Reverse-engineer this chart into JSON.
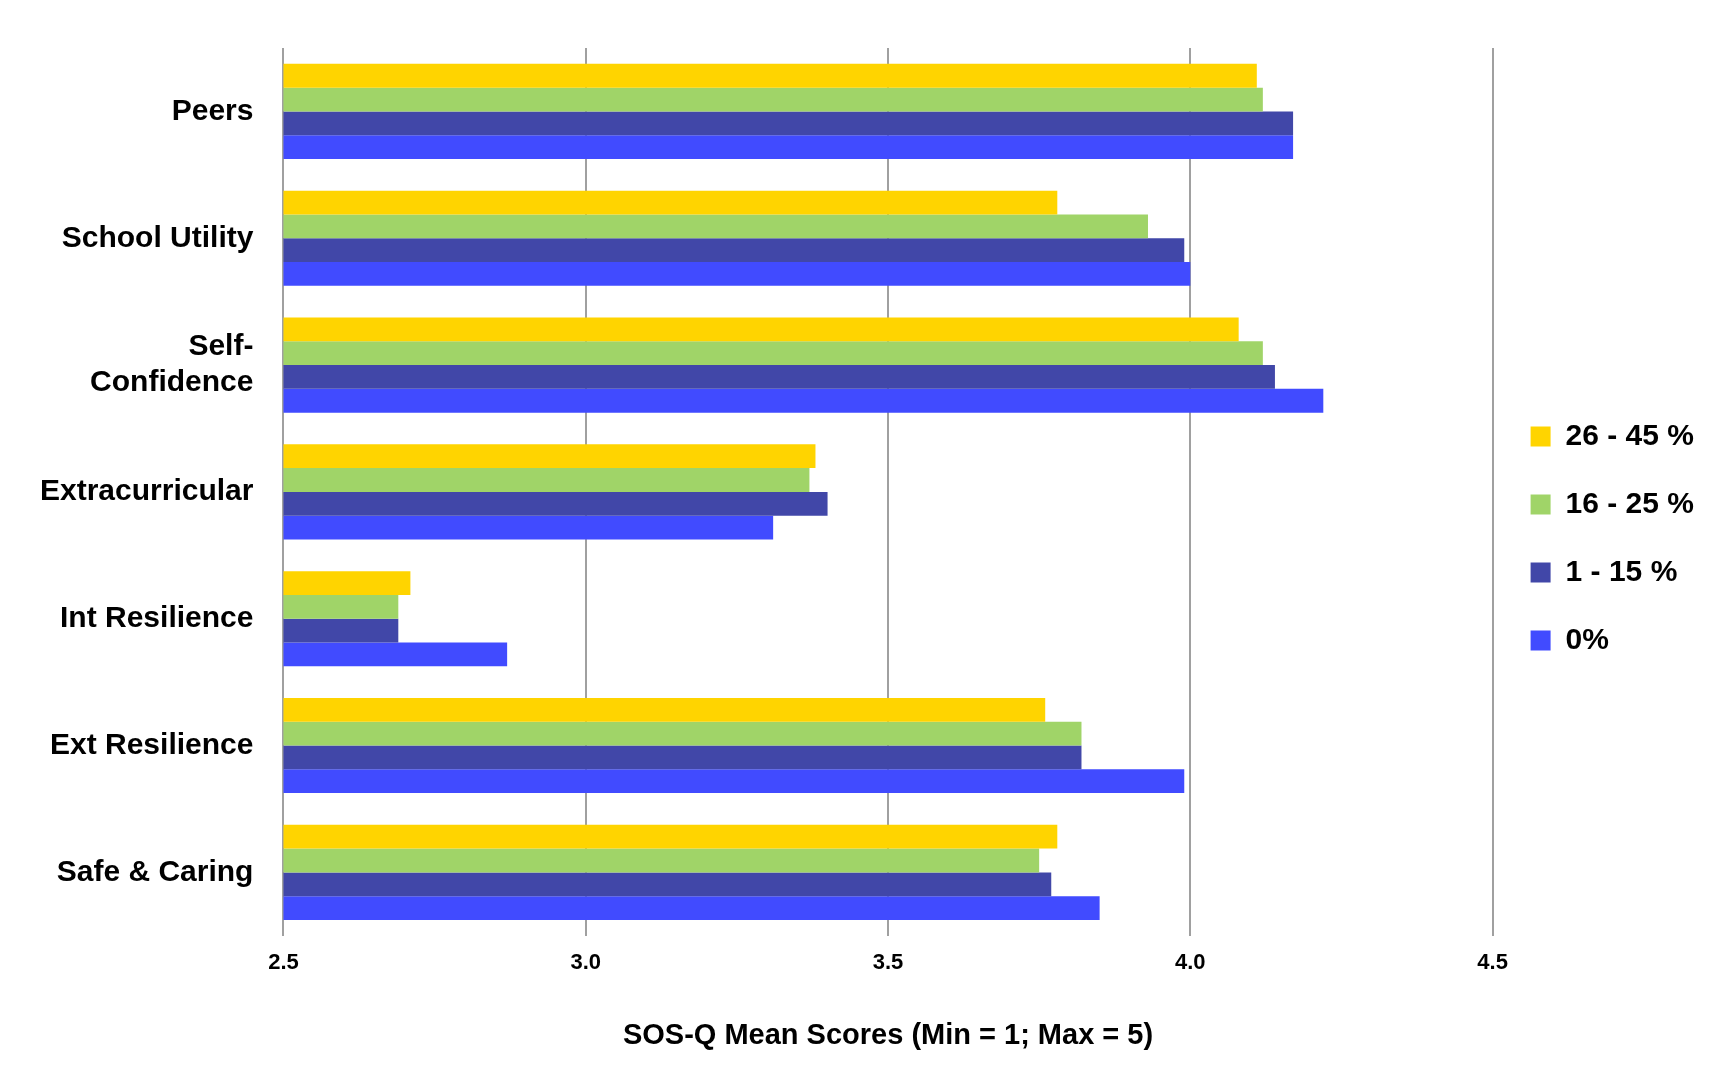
{
  "chart_data": {
    "type": "bar",
    "orientation": "horizontal",
    "xlabel": "SOS-Q Mean Scores (Min = 1; Max = 5)",
    "categories": [
      "Peers",
      "School Utility",
      "Self-Confidence",
      "Extracurricular",
      "Int Resilience",
      "Ext Resilience",
      "Safe & Caring"
    ],
    "series": [
      {
        "name": "26 - 45 %",
        "color": "#ffd400",
        "values": [
          4.11,
          3.78,
          4.08,
          3.38,
          2.71,
          3.76,
          3.78
        ]
      },
      {
        "name": "16 - 25 %",
        "color": "#a0d468",
        "values": [
          4.12,
          3.93,
          4.12,
          3.37,
          2.69,
          3.82,
          3.75
        ]
      },
      {
        "name": "1 - 15 %",
        "color": "#4147a8",
        "values": [
          4.17,
          3.99,
          4.14,
          3.4,
          2.69,
          3.82,
          3.77
        ]
      },
      {
        "name": "0%",
        "color": "#414bff",
        "values": [
          4.17,
          4.0,
          4.22,
          3.31,
          2.87,
          3.99,
          3.85
        ]
      }
    ],
    "xlim": [
      2.5,
      4.5
    ],
    "xticks": [
      2.5,
      {
        "value": 3.0,
        "label": "3.0"
      },
      3.5,
      {
        "value": 4.0,
        "label": "4.0"
      },
      4.5
    ],
    "grid": "x",
    "legend": "right"
  }
}
